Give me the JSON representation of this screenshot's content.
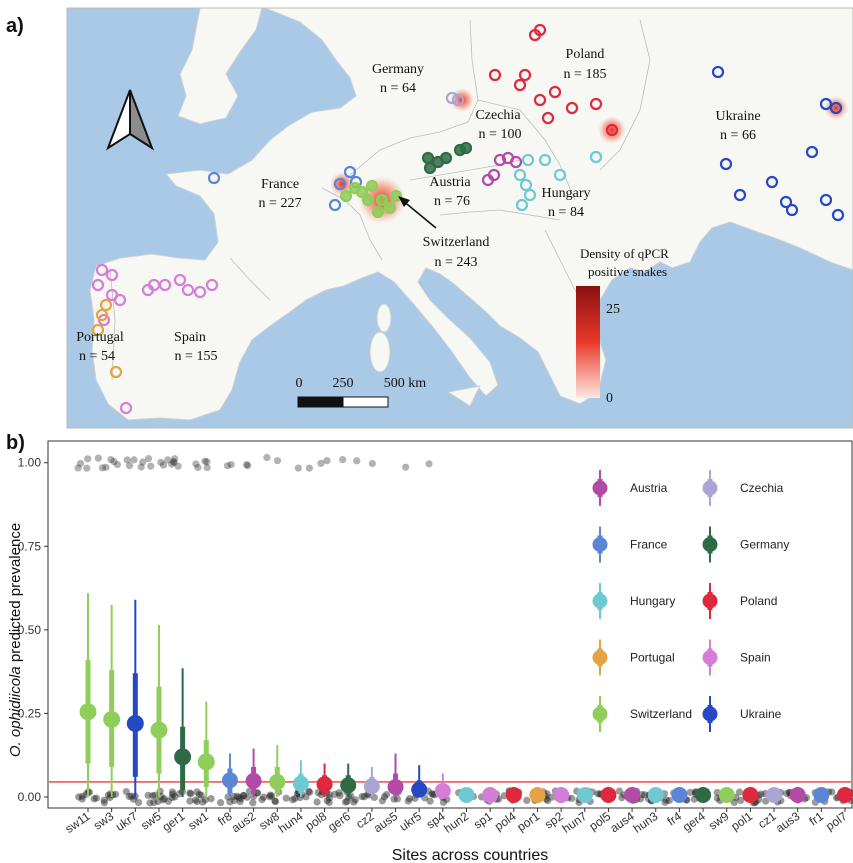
{
  "panel_a": {
    "label": "a)",
    "countries": [
      {
        "name": "Germany",
        "n": "n = 64"
      },
      {
        "name": "Poland",
        "n": "n = 185"
      },
      {
        "name": "Czechia",
        "n": "n = 100"
      },
      {
        "name": "Ukraine",
        "n": "n = 66"
      },
      {
        "name": "France",
        "n": "n = 227"
      },
      {
        "name": "Austria",
        "n": "n = 76"
      },
      {
        "name": "Hungary",
        "n": "n = 84"
      },
      {
        "name": "Switzerland",
        "n": "n = 243"
      },
      {
        "name": "Portugal",
        "n": "n = 54"
      },
      {
        "name": "Spain",
        "n": "n = 155"
      }
    ],
    "density_legend": {
      "title_line1": "Density of qPCR",
      "title_line2": "positive snakes",
      "max": "25",
      "min": "0"
    },
    "scalebar": {
      "labels": [
        "0",
        "250",
        "500 km"
      ]
    },
    "colors": {
      "sea": "#a9c9e6",
      "land": "#f7f7f4",
      "density_high": "#8b0f0f",
      "density_low": "#fde8e0"
    }
  },
  "chart_data": {
    "label": "b)",
    "type": "scatter",
    "ylabel_italic": "O. ophidiicola",
    "ylabel_rest": " predicted prevalence",
    "xlabel": "Sites across countries",
    "ylim": [
      -0.03,
      1.05
    ],
    "yticks": [
      "0.00",
      "0.25",
      "0.50",
      "0.75",
      "1.00"
    ],
    "threshold": 0.045,
    "threshold_color": "#ee3b3b",
    "grid": false,
    "legend_position": "top-right",
    "legend": [
      {
        "name": "Austria",
        "color": "#b34aa8"
      },
      {
        "name": "Czechia",
        "color": "#a9a6d4"
      },
      {
        "name": "France",
        "color": "#5b86d6"
      },
      {
        "name": "Germany",
        "color": "#2e6b45"
      },
      {
        "name": "Hungary",
        "color": "#6fc9d3"
      },
      {
        "name": "Poland",
        "color": "#e0283c"
      },
      {
        "name": "Portugal",
        "color": "#e5a343"
      },
      {
        "name": "Spain",
        "color": "#d57ed8"
      },
      {
        "name": "Switzerland",
        "color": "#8fce5a"
      },
      {
        "name": "Ukraine",
        "color": "#2548c5"
      }
    ],
    "sites": [
      {
        "site": "sw11",
        "country": "Switzerland",
        "mean": 0.255,
        "lo": 0.0,
        "hi": 0.61,
        "lo80": 0.1,
        "hi80": 0.41
      },
      {
        "site": "sw3",
        "country": "Switzerland",
        "mean": 0.232,
        "lo": 0.0,
        "hi": 0.575,
        "lo80": 0.09,
        "hi80": 0.38
      },
      {
        "site": "ukr7",
        "country": "Ukraine",
        "mean": 0.22,
        "lo": 0.0,
        "hi": 0.59,
        "lo80": 0.06,
        "hi80": 0.37
      },
      {
        "site": "sw5",
        "country": "Switzerland",
        "mean": 0.2,
        "lo": 0.0,
        "hi": 0.515,
        "lo80": 0.07,
        "hi80": 0.33
      },
      {
        "site": "ger1",
        "country": "Germany",
        "mean": 0.12,
        "lo": 0.0,
        "hi": 0.385,
        "lo80": 0.02,
        "hi80": 0.21
      },
      {
        "site": "sw1",
        "country": "Switzerland",
        "mean": 0.105,
        "lo": 0.0,
        "hi": 0.285,
        "lo80": 0.03,
        "hi80": 0.17
      },
      {
        "site": "fr8",
        "country": "France",
        "mean": 0.05,
        "lo": 0.0,
        "hi": 0.13,
        "lo80": 0.01,
        "hi80": 0.085
      },
      {
        "site": "aus2",
        "country": "Austria",
        "mean": 0.048,
        "lo": 0.0,
        "hi": 0.145,
        "lo80": 0.01,
        "hi80": 0.09
      },
      {
        "site": "sw8",
        "country": "Switzerland",
        "mean": 0.045,
        "lo": 0.0,
        "hi": 0.155,
        "lo80": 0.01,
        "hi80": 0.09
      },
      {
        "site": "hun4",
        "country": "Hungary",
        "mean": 0.04,
        "lo": 0.0,
        "hi": 0.11,
        "lo80": 0.01,
        "hi80": 0.07
      },
      {
        "site": "pol8",
        "country": "Poland",
        "mean": 0.038,
        "lo": 0.0,
        "hi": 0.1,
        "lo80": 0.01,
        "hi80": 0.065
      },
      {
        "site": "ger6",
        "country": "Germany",
        "mean": 0.035,
        "lo": 0.0,
        "hi": 0.1,
        "lo80": 0.01,
        "hi80": 0.065
      },
      {
        "site": "cz2",
        "country": "Czechia",
        "mean": 0.032,
        "lo": 0.0,
        "hi": 0.09,
        "lo80": 0.01,
        "hi80": 0.06
      },
      {
        "site": "aus5",
        "country": "Austria",
        "mean": 0.03,
        "lo": 0.0,
        "hi": 0.13,
        "lo80": 0.005,
        "hi80": 0.07
      },
      {
        "site": "ukr5",
        "country": "Ukraine",
        "mean": 0.022,
        "lo": 0.0,
        "hi": 0.095,
        "lo80": 0.005,
        "hi80": 0.05
      },
      {
        "site": "sp4",
        "country": "Spain",
        "mean": 0.018,
        "lo": 0.0,
        "hi": 0.07,
        "lo80": 0.003,
        "hi80": 0.04
      },
      {
        "site": "hun2",
        "country": "Hungary",
        "mean": 0.006,
        "lo": 0.0,
        "hi": 0.02,
        "lo80": 0.0,
        "hi80": 0.012
      },
      {
        "site": "sp1",
        "country": "Spain",
        "mean": 0.006,
        "lo": 0.0,
        "hi": 0.02,
        "lo80": 0.0,
        "hi80": 0.012
      },
      {
        "site": "pol4",
        "country": "Poland",
        "mean": 0.006,
        "lo": 0.0,
        "hi": 0.02,
        "lo80": 0.0,
        "hi80": 0.012
      },
      {
        "site": "por1",
        "country": "Portugal",
        "mean": 0.006,
        "lo": 0.0,
        "hi": 0.02,
        "lo80": 0.0,
        "hi80": 0.012
      },
      {
        "site": "sp2",
        "country": "Spain",
        "mean": 0.006,
        "lo": 0.0,
        "hi": 0.02,
        "lo80": 0.0,
        "hi80": 0.012
      },
      {
        "site": "hun7",
        "country": "Hungary",
        "mean": 0.006,
        "lo": 0.0,
        "hi": 0.02,
        "lo80": 0.0,
        "hi80": 0.012
      },
      {
        "site": "pol5",
        "country": "Poland",
        "mean": 0.006,
        "lo": 0.0,
        "hi": 0.02,
        "lo80": 0.0,
        "hi80": 0.012
      },
      {
        "site": "aus4",
        "country": "Austria",
        "mean": 0.006,
        "lo": 0.0,
        "hi": 0.02,
        "lo80": 0.0,
        "hi80": 0.012
      },
      {
        "site": "hun3",
        "country": "Hungary",
        "mean": 0.006,
        "lo": 0.0,
        "hi": 0.02,
        "lo80": 0.0,
        "hi80": 0.012
      },
      {
        "site": "fr4",
        "country": "France",
        "mean": 0.006,
        "lo": 0.0,
        "hi": 0.02,
        "lo80": 0.0,
        "hi80": 0.012
      },
      {
        "site": "ger4",
        "country": "Germany",
        "mean": 0.006,
        "lo": 0.0,
        "hi": 0.02,
        "lo80": 0.0,
        "hi80": 0.012
      },
      {
        "site": "sw9",
        "country": "Switzerland",
        "mean": 0.006,
        "lo": 0.0,
        "hi": 0.02,
        "lo80": 0.0,
        "hi80": 0.012
      },
      {
        "site": "pol1",
        "country": "Poland",
        "mean": 0.006,
        "lo": 0.0,
        "hi": 0.02,
        "lo80": 0.0,
        "hi80": 0.012
      },
      {
        "site": "cz1",
        "country": "Czechia",
        "mean": 0.006,
        "lo": 0.0,
        "hi": 0.02,
        "lo80": 0.0,
        "hi80": 0.012
      },
      {
        "site": "aus3",
        "country": "Austria",
        "mean": 0.006,
        "lo": 0.0,
        "hi": 0.02,
        "lo80": 0.0,
        "hi80": 0.012
      },
      {
        "site": "fr1",
        "country": "France",
        "mean": 0.006,
        "lo": 0.0,
        "hi": 0.02,
        "lo80": 0.0,
        "hi80": 0.012
      },
      {
        "site": "pol7",
        "country": "Poland",
        "mean": 0.006,
        "lo": 0.0,
        "hi": 0.02,
        "lo80": 0.0,
        "hi80": 0.012
      }
    ]
  }
}
